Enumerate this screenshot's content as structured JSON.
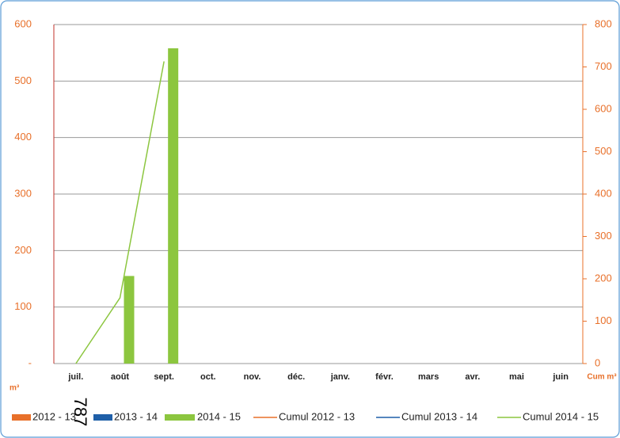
{
  "chart_data": {
    "type": "bar",
    "categories": [
      "juil.",
      "août",
      "sept.",
      "oct.",
      "nov.",
      "déc.",
      "janv.",
      "févr.",
      "mars",
      "avr.",
      "mai",
      "juin"
    ],
    "series": [
      {
        "name": "2012 - 13",
        "type": "bar",
        "color": "#e8702a",
        "values": [
          null,
          null,
          null,
          null,
          null,
          null,
          null,
          null,
          null,
          null,
          null,
          null
        ]
      },
      {
        "name": "2013 - 14",
        "type": "bar",
        "color": "#1f5fa8",
        "values": [
          null,
          null,
          null,
          null,
          null,
          null,
          null,
          null,
          null,
          null,
          null,
          null
        ]
      },
      {
        "name": "2014 - 15",
        "type": "bar",
        "color": "#8cc63f",
        "values": [
          0,
          155,
          558,
          null,
          null,
          null,
          null,
          null,
          null,
          null,
          null,
          null
        ]
      },
      {
        "name": "Cumul 2012 - 13",
        "type": "line",
        "axis": "y2",
        "color": "#e8702a",
        "values": [
          null,
          null,
          null,
          null,
          null,
          null,
          null,
          null,
          null,
          null,
          null,
          null
        ]
      },
      {
        "name": "Cumul 2013 - 14",
        "type": "line",
        "axis": "y2",
        "color": "#1f5fa8",
        "values": [
          null,
          null,
          null,
          null,
          null,
          null,
          null,
          null,
          null,
          null,
          null,
          null
        ]
      },
      {
        "name": "Cumul 2014 - 15",
        "type": "line",
        "axis": "y2",
        "color": "#8cc63f",
        "values": [
          0,
          155,
          713,
          null,
          null,
          null,
          null,
          null,
          null,
          null,
          null,
          null
        ]
      }
    ],
    "ylim": [
      0,
      600
    ],
    "yticks": [
      {
        "value": 0,
        "label": "-"
      },
      100,
      200,
      300,
      400,
      500,
      600
    ],
    "y2lim": [
      0,
      800
    ],
    "y2ticks": [
      0,
      100,
      200,
      300,
      400,
      500,
      600,
      700,
      800
    ],
    "ylabel": "m³",
    "y2label": "Cum m³",
    "annotation": "787",
    "grid": true,
    "legend": "bottom"
  }
}
